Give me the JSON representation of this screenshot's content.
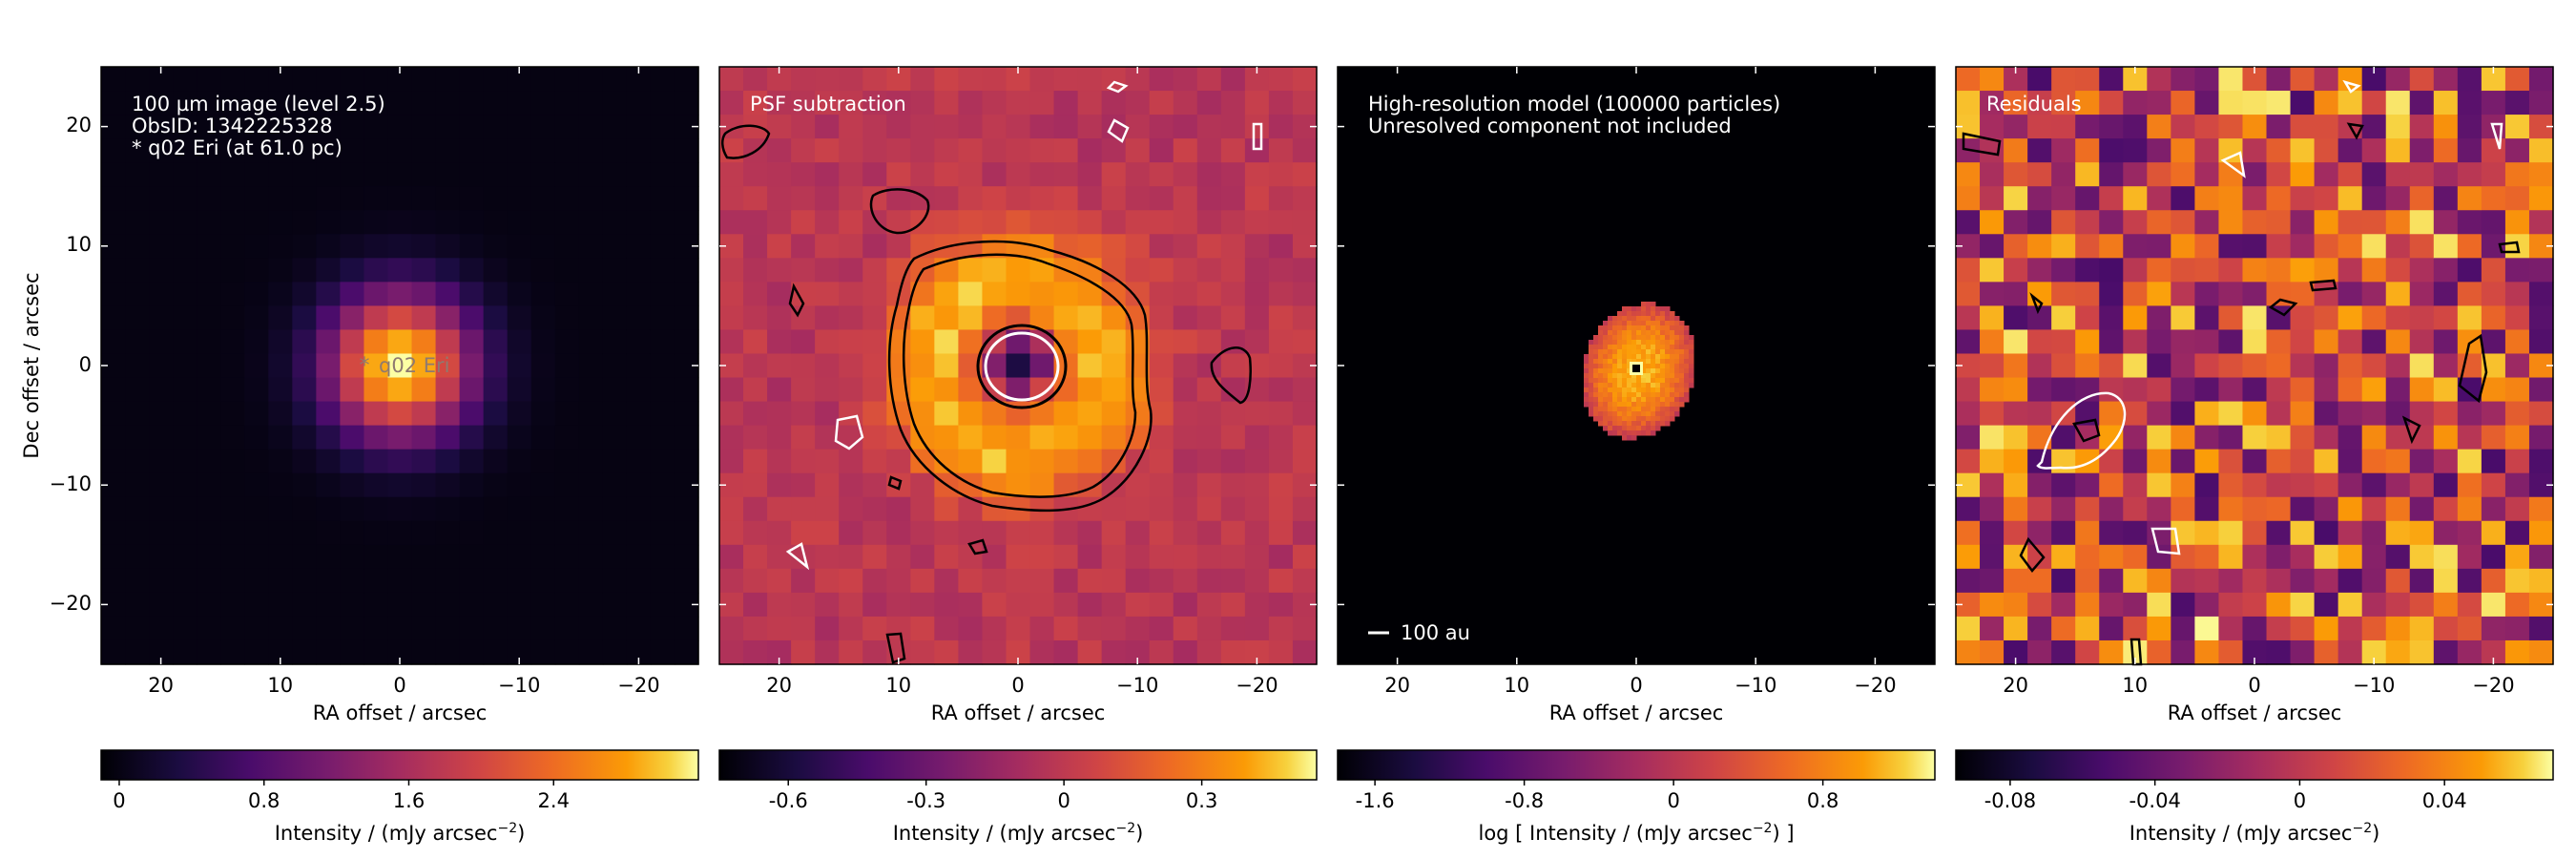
{
  "chart_data": [
    {
      "type": "heatmap",
      "panel": "observation",
      "annotation_lines": [
        "100 µm image (level 2.5)",
        "ObsID: 1342225328",
        "* q02 Eri (at 61.0 pc)"
      ],
      "star_marker_label": "q02 Eri",
      "xlabel": "RA offset / arcsec",
      "ylabel": "Dec offset / arcsec",
      "xlim": [
        25,
        -25
      ],
      "ylim": [
        -25,
        25
      ],
      "xticks": [
        20,
        10,
        0,
        -10,
        -20
      ],
      "xtick_labels": [
        "20",
        "10",
        "0",
        "−10",
        "−20"
      ],
      "yticks": [
        20,
        10,
        0,
        -10,
        -20
      ],
      "ytick_labels": [
        "20",
        "10",
        "0",
        "−10",
        "−20"
      ],
      "colormap": "inferno",
      "colorbar": {
        "label_main": "Intensity / (mJy arcsec",
        "label_sup": "−2",
        "label_end": ")",
        "range": [
          -0.1,
          3.2
        ],
        "ticks": [
          0,
          0.8,
          1.6,
          2.4
        ],
        "tick_labels": [
          "0",
          "0.8",
          "1.6",
          "2.4"
        ]
      }
    },
    {
      "type": "heatmap",
      "panel": "psf_subtraction",
      "annotation_lines": [
        "PSF subtraction"
      ],
      "xlabel": "RA offset / arcsec",
      "xlim": [
        25,
        -25
      ],
      "ylim": [
        -25,
        25
      ],
      "xticks": [
        20,
        10,
        0,
        -10,
        -20
      ],
      "xtick_labels": [
        "20",
        "10",
        "0",
        "−10",
        "−20"
      ],
      "colormap": "inferno",
      "contours": "black contours outline the disc ring; white contours mark negative residuals",
      "colorbar": {
        "label_main": "Intensity / (mJy arcsec",
        "label_sup": "−2",
        "label_end": ")",
        "range": [
          -0.75,
          0.55
        ],
        "ticks": [
          -0.6,
          -0.3,
          0,
          0.3
        ],
        "tick_labels": [
          "-0.6",
          "-0.3",
          "0",
          "0.3"
        ]
      }
    },
    {
      "type": "heatmap",
      "panel": "model",
      "annotation_lines": [
        "High-resolution model (100000 particles)",
        "Unresolved component not included"
      ],
      "scale_bar_label": "100 au",
      "xlabel": "RA offset / arcsec",
      "xlim": [
        25,
        -25
      ],
      "ylim": [
        -25,
        25
      ],
      "xticks": [
        20,
        10,
        0,
        -10,
        -20
      ],
      "xtick_labels": [
        "20",
        "10",
        "0",
        "−10",
        "−20"
      ],
      "colormap": "inferno",
      "colorbar": {
        "label_pre": "log [ Intensity / (mJy arcsec",
        "label_sup": "−2",
        "label_end": ") ]",
        "range": [
          -1.8,
          1.4
        ],
        "ticks": [
          -1.6,
          -0.8,
          0,
          0.8
        ],
        "tick_labels": [
          "-1.6",
          "-0.8",
          "0",
          "0.8"
        ]
      }
    },
    {
      "type": "heatmap",
      "panel": "residuals",
      "annotation_lines": [
        "Residuals"
      ],
      "xlabel": "RA offset / arcsec",
      "xlim": [
        25,
        -25
      ],
      "ylim": [
        -25,
        25
      ],
      "xticks": [
        20,
        10,
        0,
        -10,
        -20
      ],
      "xtick_labels": [
        "20",
        "10",
        "0",
        "−10",
        "−20"
      ],
      "colormap": "inferno",
      "colorbar": {
        "label_main": "Intensity / (mJy arcsec",
        "label_sup": "−2",
        "label_end": ")",
        "range": [
          -0.095,
          0.07
        ],
        "ticks": [
          -0.08,
          -0.04,
          0,
          0.04
        ],
        "tick_labels": [
          "-0.08",
          "-0.04",
          "0",
          "0.04"
        ]
      }
    }
  ]
}
